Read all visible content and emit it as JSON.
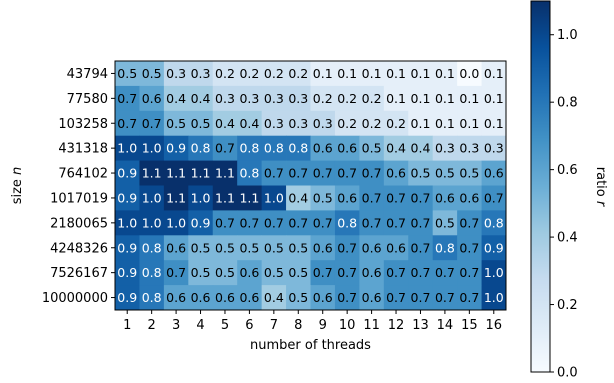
{
  "chart_data": {
    "type": "heatmap",
    "xlabel": "number of threads",
    "ylabel": "size n",
    "colorbar_label": "ratio r",
    "colormap": "Blues",
    "vmin": 0.0,
    "vmax": 1.1,
    "colorbar_ticks": [
      "0.0",
      "0.2",
      "0.4",
      "0.6",
      "0.8",
      "1.0"
    ],
    "x": [
      "1",
      "2",
      "3",
      "4",
      "5",
      "6",
      "7",
      "8",
      "9",
      "10",
      "11",
      "12",
      "13",
      "14",
      "15",
      "16"
    ],
    "y": [
      "43794",
      "77580",
      "103258",
      "431318",
      "764102",
      "1017019",
      "2180065",
      "4248326",
      "7526167",
      "10000000"
    ],
    "values": [
      [
        0.5,
        0.5,
        0.3,
        0.3,
        0.2,
        0.2,
        0.2,
        0.2,
        0.1,
        0.1,
        0.1,
        0.1,
        0.1,
        0.1,
        0.0,
        0.1
      ],
      [
        0.7,
        0.6,
        0.4,
        0.4,
        0.3,
        0.3,
        0.3,
        0.3,
        0.2,
        0.2,
        0.2,
        0.1,
        0.1,
        0.1,
        0.1,
        0.1
      ],
      [
        0.7,
        0.7,
        0.5,
        0.5,
        0.4,
        0.4,
        0.3,
        0.3,
        0.3,
        0.2,
        0.2,
        0.2,
        0.1,
        0.1,
        0.1,
        0.1
      ],
      [
        1.0,
        1.0,
        0.9,
        0.8,
        0.7,
        0.8,
        0.8,
        0.8,
        0.6,
        0.6,
        0.5,
        0.4,
        0.4,
        0.3,
        0.3,
        0.3
      ],
      [
        0.9,
        1.1,
        1.1,
        1.1,
        1.1,
        0.8,
        0.7,
        0.7,
        0.7,
        0.7,
        0.7,
        0.6,
        0.5,
        0.5,
        0.5,
        0.6
      ],
      [
        0.9,
        1.0,
        1.1,
        1.0,
        1.1,
        1.1,
        1.0,
        0.4,
        0.5,
        0.6,
        0.7,
        0.7,
        0.7,
        0.6,
        0.6,
        0.7
      ],
      [
        1.0,
        1.0,
        1.0,
        0.9,
        0.7,
        0.7,
        0.7,
        0.7,
        0.7,
        0.8,
        0.7,
        0.7,
        0.7,
        0.5,
        0.7,
        0.8
      ],
      [
        0.9,
        0.8,
        0.6,
        0.5,
        0.5,
        0.5,
        0.5,
        0.5,
        0.6,
        0.7,
        0.6,
        0.6,
        0.7,
        0.8,
        0.7,
        0.9
      ],
      [
        0.9,
        0.8,
        0.7,
        0.5,
        0.5,
        0.6,
        0.5,
        0.5,
        0.7,
        0.7,
        0.6,
        0.7,
        0.7,
        0.7,
        0.7,
        1.0
      ],
      [
        0.9,
        0.8,
        0.6,
        0.6,
        0.6,
        0.6,
        0.4,
        0.5,
        0.6,
        0.7,
        0.6,
        0.7,
        0.7,
        0.7,
        0.7,
        1.0
      ]
    ]
  }
}
